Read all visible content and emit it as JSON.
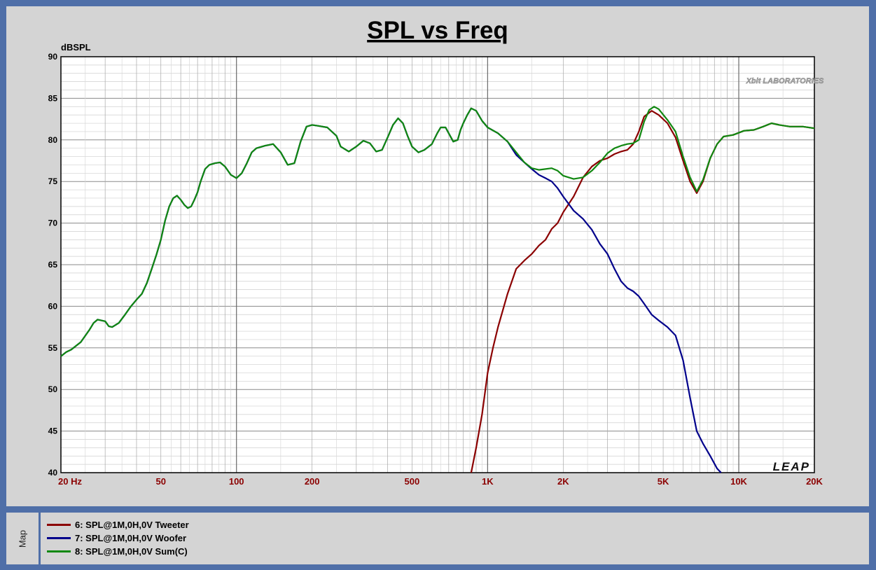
{
  "panel": {
    "map_label": "Map"
  },
  "chart_data": {
    "type": "line",
    "title": "SPL vs Freq",
    "ylabel": "dBSPL",
    "xscale": "log",
    "xlim": [
      20,
      20000
    ],
    "ylim": [
      40,
      90
    ],
    "grid": true,
    "y_ticks": [
      40,
      45,
      50,
      55,
      60,
      65,
      70,
      75,
      80,
      85,
      90
    ],
    "x_ticks": [
      {
        "value": 20,
        "label": "20  Hz"
      },
      {
        "value": 50,
        "label": "50"
      },
      {
        "value": 100,
        "label": "100"
      },
      {
        "value": 200,
        "label": "200"
      },
      {
        "value": 500,
        "label": "500"
      },
      {
        "value": 1000,
        "label": "1K"
      },
      {
        "value": 2000,
        "label": "2K"
      },
      {
        "value": 5000,
        "label": "5K"
      },
      {
        "value": 10000,
        "label": "10K"
      },
      {
        "value": 20000,
        "label": "20K"
      }
    ],
    "logo_text": "Xbit LABORATORIES",
    "watermark": "LEAP",
    "series": [
      {
        "name": "6: SPL@1M,0H,0V Tweeter",
        "color": "#8b0000",
        "points": [
          [
            860,
            40
          ],
          [
            900,
            43
          ],
          [
            950,
            47
          ],
          [
            1000,
            52
          ],
          [
            1050,
            55
          ],
          [
            1100,
            57.5
          ],
          [
            1200,
            61.5
          ],
          [
            1300,
            64.5
          ],
          [
            1400,
            65.5
          ],
          [
            1500,
            66.3
          ],
          [
            1600,
            67.3
          ],
          [
            1700,
            68
          ],
          [
            1800,
            69.3
          ],
          [
            1900,
            70
          ],
          [
            2000,
            71.3
          ],
          [
            2200,
            73.2
          ],
          [
            2400,
            75.5
          ],
          [
            2600,
            76.8
          ],
          [
            2800,
            77.5
          ],
          [
            3000,
            77.8
          ],
          [
            3200,
            78.3
          ],
          [
            3400,
            78.6
          ],
          [
            3600,
            78.8
          ],
          [
            3800,
            79.5
          ],
          [
            4000,
            81
          ],
          [
            4200,
            82.8
          ],
          [
            4500,
            83.5
          ],
          [
            4800,
            83
          ],
          [
            5200,
            82
          ],
          [
            5600,
            80.3
          ],
          [
            6000,
            77.5
          ],
          [
            6400,
            75
          ],
          [
            6800,
            73.6
          ],
          [
            7200,
            75
          ],
          [
            7700,
            77.8
          ],
          [
            8200,
            79.5
          ],
          [
            8700,
            80.4
          ],
          [
            9500,
            80.6
          ],
          [
            10500,
            81.1
          ],
          [
            11500,
            81.2
          ],
          [
            12500,
            81.6
          ],
          [
            13500,
            82
          ],
          [
            14500,
            81.8
          ],
          [
            16000,
            81.6
          ],
          [
            18000,
            81.6
          ],
          [
            20000,
            81.4
          ]
        ]
      },
      {
        "name": "7: SPL@1M,0H,0V Woofer",
        "color": "#00008b",
        "points": [
          [
            20,
            54
          ],
          [
            21,
            54.5
          ],
          [
            22,
            54.8
          ],
          [
            24,
            55.7
          ],
          [
            26,
            57.2
          ],
          [
            27,
            58
          ],
          [
            28,
            58.4
          ],
          [
            30,
            58.2
          ],
          [
            31,
            57.6
          ],
          [
            32,
            57.5
          ],
          [
            34,
            58
          ],
          [
            36,
            59
          ],
          [
            38,
            60
          ],
          [
            40,
            60.8
          ],
          [
            42,
            61.5
          ],
          [
            44,
            62.8
          ],
          [
            46,
            64.5
          ],
          [
            48,
            66.2
          ],
          [
            50,
            68
          ],
          [
            52,
            70.3
          ],
          [
            54,
            72
          ],
          [
            56,
            73
          ],
          [
            58,
            73.3
          ],
          [
            60,
            72.8
          ],
          [
            62,
            72.2
          ],
          [
            64,
            71.8
          ],
          [
            66,
            72
          ],
          [
            68,
            72.8
          ],
          [
            70,
            73.7
          ],
          [
            72,
            75
          ],
          [
            75,
            76.5
          ],
          [
            78,
            77
          ],
          [
            82,
            77.2
          ],
          [
            86,
            77.3
          ],
          [
            90,
            76.8
          ],
          [
            95,
            75.8
          ],
          [
            100,
            75.4
          ],
          [
            105,
            76
          ],
          [
            110,
            77.2
          ],
          [
            115,
            78.5
          ],
          [
            120,
            79
          ],
          [
            130,
            79.3
          ],
          [
            140,
            79.5
          ],
          [
            150,
            78.5
          ],
          [
            160,
            77
          ],
          [
            170,
            77.2
          ],
          [
            180,
            79.8
          ],
          [
            190,
            81.6
          ],
          [
            200,
            81.8
          ],
          [
            210,
            81.7
          ],
          [
            230,
            81.5
          ],
          [
            250,
            80.5
          ],
          [
            260,
            79.2
          ],
          [
            280,
            78.6
          ],
          [
            300,
            79.2
          ],
          [
            320,
            79.9
          ],
          [
            340,
            79.6
          ],
          [
            360,
            78.6
          ],
          [
            380,
            78.8
          ],
          [
            400,
            80.3
          ],
          [
            420,
            81.8
          ],
          [
            440,
            82.6
          ],
          [
            460,
            82
          ],
          [
            480,
            80.5
          ],
          [
            500,
            79.2
          ],
          [
            530,
            78.5
          ],
          [
            560,
            78.8
          ],
          [
            600,
            79.5
          ],
          [
            630,
            80.8
          ],
          [
            650,
            81.5
          ],
          [
            680,
            81.5
          ],
          [
            700,
            80.8
          ],
          [
            730,
            79.8
          ],
          [
            760,
            80
          ],
          [
            780,
            81.2
          ],
          [
            800,
            82
          ],
          [
            830,
            83
          ],
          [
            860,
            83.8
          ],
          [
            900,
            83.5
          ],
          [
            950,
            82.3
          ],
          [
            1000,
            81.5
          ],
          [
            1100,
            80.8
          ],
          [
            1200,
            79.8
          ],
          [
            1300,
            78.2
          ],
          [
            1400,
            77.3
          ],
          [
            1500,
            76.5
          ],
          [
            1600,
            75.8
          ],
          [
            1700,
            75.4
          ],
          [
            1800,
            75
          ],
          [
            1900,
            74.2
          ],
          [
            2000,
            73.2
          ],
          [
            2200,
            71.5
          ],
          [
            2400,
            70.5
          ],
          [
            2600,
            69.2
          ],
          [
            2800,
            67.5
          ],
          [
            3000,
            66.3
          ],
          [
            3200,
            64.5
          ],
          [
            3400,
            63
          ],
          [
            3600,
            62.2
          ],
          [
            3800,
            61.8
          ],
          [
            4000,
            61.2
          ],
          [
            4200,
            60.3
          ],
          [
            4500,
            59
          ],
          [
            4800,
            58.3
          ],
          [
            5200,
            57.5
          ],
          [
            5600,
            56.5
          ],
          [
            6000,
            53.5
          ],
          [
            6400,
            49
          ],
          [
            6800,
            45
          ],
          [
            7200,
            43.5
          ],
          [
            7700,
            42
          ],
          [
            8200,
            40.5
          ],
          [
            8500,
            40
          ]
        ]
      },
      {
        "name": "8: SPL@1M,0H,0V Sum(C)",
        "color": "#118811",
        "points": [
          [
            20,
            54
          ],
          [
            21,
            54.5
          ],
          [
            22,
            54.8
          ],
          [
            24,
            55.7
          ],
          [
            26,
            57.2
          ],
          [
            27,
            58
          ],
          [
            28,
            58.4
          ],
          [
            30,
            58.2
          ],
          [
            31,
            57.6
          ],
          [
            32,
            57.5
          ],
          [
            34,
            58
          ],
          [
            36,
            59
          ],
          [
            38,
            60
          ],
          [
            40,
            60.8
          ],
          [
            42,
            61.5
          ],
          [
            44,
            62.8
          ],
          [
            46,
            64.5
          ],
          [
            48,
            66.2
          ],
          [
            50,
            68
          ],
          [
            52,
            70.3
          ],
          [
            54,
            72
          ],
          [
            56,
            73
          ],
          [
            58,
            73.3
          ],
          [
            60,
            72.8
          ],
          [
            62,
            72.2
          ],
          [
            64,
            71.8
          ],
          [
            66,
            72
          ],
          [
            68,
            72.8
          ],
          [
            70,
            73.7
          ],
          [
            72,
            75
          ],
          [
            75,
            76.5
          ],
          [
            78,
            77
          ],
          [
            82,
            77.2
          ],
          [
            86,
            77.3
          ],
          [
            90,
            76.8
          ],
          [
            95,
            75.8
          ],
          [
            100,
            75.4
          ],
          [
            105,
            76
          ],
          [
            110,
            77.2
          ],
          [
            115,
            78.5
          ],
          [
            120,
            79
          ],
          [
            130,
            79.3
          ],
          [
            140,
            79.5
          ],
          [
            150,
            78.5
          ],
          [
            160,
            77
          ],
          [
            170,
            77.2
          ],
          [
            180,
            79.8
          ],
          [
            190,
            81.6
          ],
          [
            200,
            81.8
          ],
          [
            210,
            81.7
          ],
          [
            230,
            81.5
          ],
          [
            250,
            80.5
          ],
          [
            260,
            79.2
          ],
          [
            280,
            78.6
          ],
          [
            300,
            79.2
          ],
          [
            320,
            79.9
          ],
          [
            340,
            79.6
          ],
          [
            360,
            78.6
          ],
          [
            380,
            78.8
          ],
          [
            400,
            80.3
          ],
          [
            420,
            81.8
          ],
          [
            440,
            82.6
          ],
          [
            460,
            82
          ],
          [
            480,
            80.5
          ],
          [
            500,
            79.2
          ],
          [
            530,
            78.5
          ],
          [
            560,
            78.8
          ],
          [
            600,
            79.5
          ],
          [
            630,
            80.8
          ],
          [
            650,
            81.5
          ],
          [
            680,
            81.5
          ],
          [
            700,
            80.8
          ],
          [
            730,
            79.8
          ],
          [
            760,
            80
          ],
          [
            780,
            81.2
          ],
          [
            800,
            82
          ],
          [
            830,
            83
          ],
          [
            860,
            83.8
          ],
          [
            900,
            83.5
          ],
          [
            950,
            82.3
          ],
          [
            1000,
            81.5
          ],
          [
            1100,
            80.8
          ],
          [
            1200,
            79.8
          ],
          [
            1300,
            78.5
          ],
          [
            1400,
            77.3
          ],
          [
            1500,
            76.6
          ],
          [
            1600,
            76.4
          ],
          [
            1700,
            76.5
          ],
          [
            1800,
            76.6
          ],
          [
            1900,
            76.3
          ],
          [
            2000,
            75.7
          ],
          [
            2200,
            75.3
          ],
          [
            2400,
            75.5
          ],
          [
            2600,
            76.3
          ],
          [
            2800,
            77.3
          ],
          [
            3000,
            78.4
          ],
          [
            3200,
            79
          ],
          [
            3400,
            79.3
          ],
          [
            3600,
            79.5
          ],
          [
            3800,
            79.6
          ],
          [
            4000,
            80
          ],
          [
            4200,
            82.2
          ],
          [
            4400,
            83.6
          ],
          [
            4600,
            84
          ],
          [
            4800,
            83.7
          ],
          [
            5200,
            82.4
          ],
          [
            5600,
            81
          ],
          [
            6000,
            78
          ],
          [
            6400,
            75.5
          ],
          [
            6800,
            73.8
          ],
          [
            7200,
            75.2
          ],
          [
            7700,
            77.8
          ],
          [
            8200,
            79.5
          ],
          [
            8700,
            80.4
          ],
          [
            9500,
            80.6
          ],
          [
            10500,
            81.1
          ],
          [
            11500,
            81.2
          ],
          [
            12500,
            81.6
          ],
          [
            13500,
            82
          ],
          [
            14500,
            81.8
          ],
          [
            16000,
            81.6
          ],
          [
            18000,
            81.6
          ],
          [
            20000,
            81.4
          ]
        ]
      }
    ]
  }
}
